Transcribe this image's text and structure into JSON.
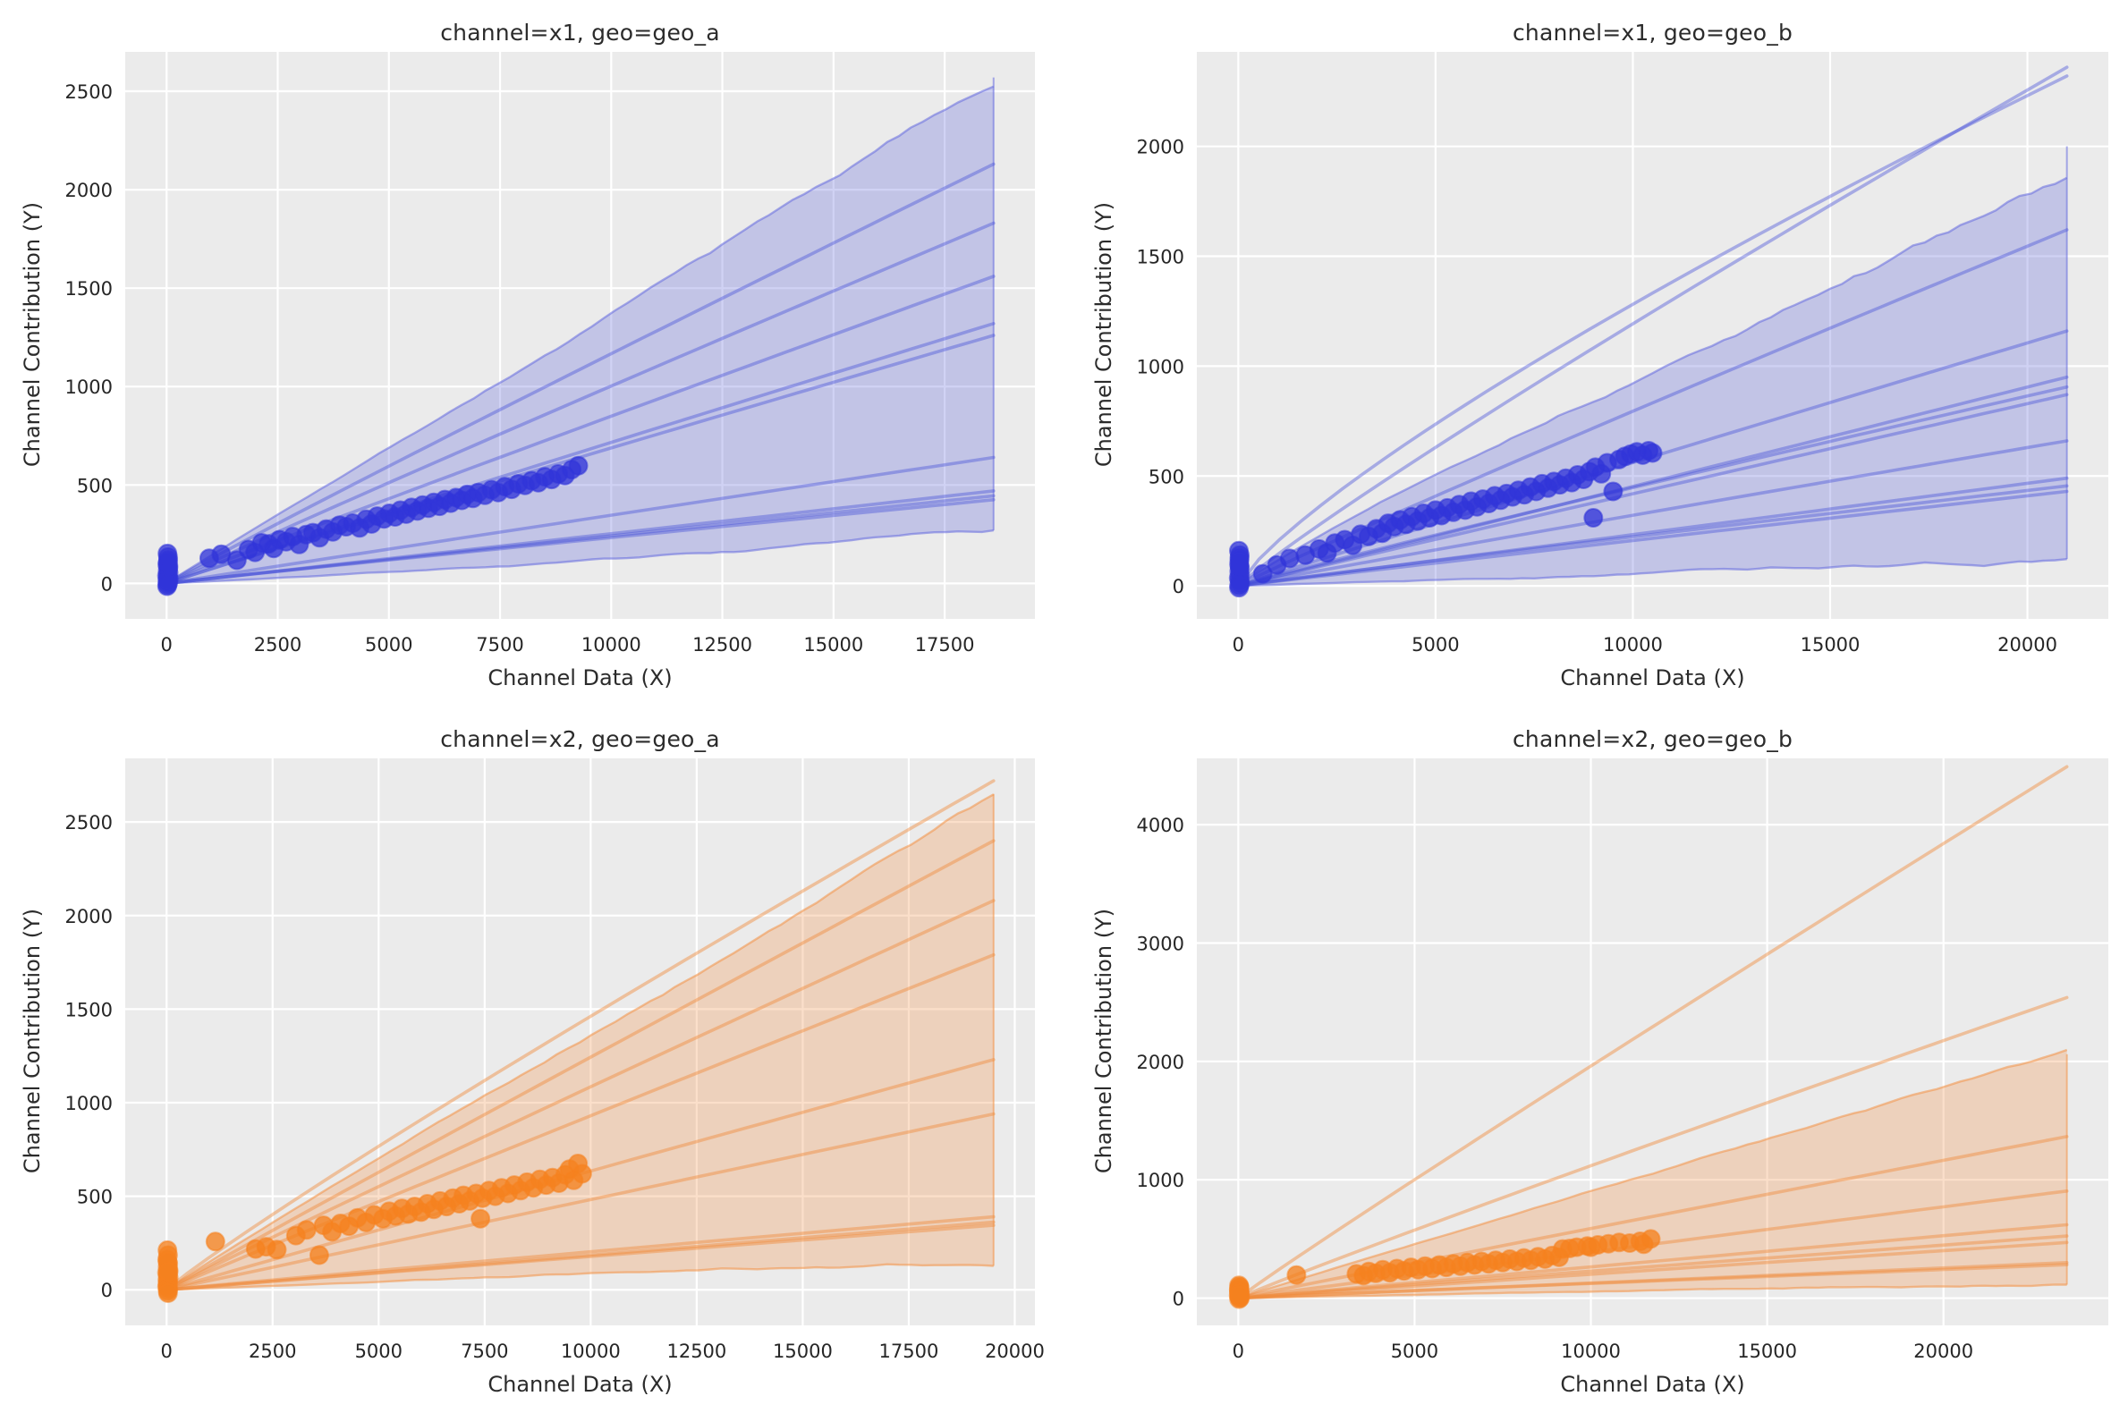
{
  "figure": {
    "background": "#ffffff",
    "axes_background": "#ebebeb",
    "grid_color": "#ffffff",
    "text_color": "#262626",
    "title_color": "#2b2b2b"
  },
  "chart_data": [
    {
      "id": "x1-geo-a",
      "type": "scatter",
      "title": "channel=x1, geo=geo_a",
      "xlabel": "Channel Data (X)",
      "ylabel": "Channel Contribution (Y)",
      "xlim": [
        -930,
        19530
      ],
      "ylim": [
        -180,
        2700
      ],
      "xticks": [
        0,
        2500,
        5000,
        7500,
        10000,
        12500,
        15000,
        17500
      ],
      "yticks": [
        0,
        500,
        1000,
        1500,
        2000,
        2500
      ],
      "grid": true,
      "legend_position": "none",
      "colors": {
        "dot": "#3134d8",
        "line": "rgba(72,80,216,0.42)",
        "band_fill": "rgba(100,106,220,0.30)",
        "band_edge": "rgba(100,106,222,0.55)"
      },
      "band": {
        "xmax": 18600,
        "top_end": 2570,
        "bottom_end": 210,
        "top_exp": 0.99,
        "seed": 7,
        "jag_top": 26,
        "jag_bottom": 12
      },
      "lines": [
        [
          2130,
          0.97
        ],
        [
          1830,
          0.97
        ],
        [
          1560,
          0.98
        ],
        [
          1320,
          0.985
        ],
        [
          1260,
          0.975
        ],
        [
          640,
          0.99
        ],
        [
          470,
          1.0
        ],
        [
          445,
          0.985
        ],
        [
          425,
          0.97
        ]
      ],
      "points": [
        [
          20,
          152
        ],
        [
          35,
          118
        ],
        [
          15,
          96
        ],
        [
          40,
          78
        ],
        [
          25,
          64
        ],
        [
          45,
          52
        ],
        [
          10,
          40
        ],
        [
          30,
          30
        ],
        [
          50,
          22
        ],
        [
          18,
          12
        ],
        [
          38,
          4
        ],
        [
          22,
          -6
        ],
        [
          12,
          -14
        ],
        [
          42,
          88
        ],
        [
          28,
          108
        ],
        [
          33,
          134
        ],
        [
          960,
          128
        ],
        [
          1230,
          148
        ],
        [
          1580,
          118
        ],
        [
          1840,
          172
        ],
        [
          1990,
          158
        ],
        [
          2140,
          206
        ],
        [
          2290,
          200
        ],
        [
          2410,
          178
        ],
        [
          2540,
          222
        ],
        [
          2690,
          212
        ],
        [
          2840,
          238
        ],
        [
          2980,
          198
        ],
        [
          3140,
          248
        ],
        [
          3290,
          258
        ],
        [
          3440,
          232
        ],
        [
          3590,
          276
        ],
        [
          3740,
          262
        ],
        [
          3890,
          296
        ],
        [
          4040,
          288
        ],
        [
          4190,
          306
        ],
        [
          4340,
          282
        ],
        [
          4490,
          326
        ],
        [
          4610,
          302
        ],
        [
          4740,
          342
        ],
        [
          4890,
          328
        ],
        [
          5010,
          356
        ],
        [
          5140,
          338
        ],
        [
          5260,
          372
        ],
        [
          5390,
          352
        ],
        [
          5510,
          386
        ],
        [
          5640,
          368
        ],
        [
          5760,
          398
        ],
        [
          5890,
          382
        ],
        [
          6010,
          412
        ],
        [
          6140,
          392
        ],
        [
          6260,
          426
        ],
        [
          6390,
          408
        ],
        [
          6510,
          436
        ],
        [
          6640,
          422
        ],
        [
          6760,
          452
        ],
        [
          6890,
          432
        ],
        [
          7010,
          462
        ],
        [
          7160,
          448
        ],
        [
          7310,
          476
        ],
        [
          7460,
          462
        ],
        [
          7610,
          492
        ],
        [
          7760,
          478
        ],
        [
          7910,
          506
        ],
        [
          8060,
          498
        ],
        [
          8210,
          522
        ],
        [
          8360,
          512
        ],
        [
          8510,
          542
        ],
        [
          8660,
          528
        ],
        [
          8810,
          556
        ],
        [
          8960,
          548
        ],
        [
          9110,
          578
        ],
        [
          9260,
          598
        ]
      ]
    },
    {
      "id": "x1-geo-b",
      "type": "scatter",
      "title": "channel=x1, geo=geo_b",
      "xlabel": "Channel Data (X)",
      "ylabel": "Channel Contribution (Y)",
      "xlim": [
        -1050,
        22050
      ],
      "ylim": [
        -150,
        2430
      ],
      "xticks": [
        0,
        5000,
        10000,
        15000,
        20000
      ],
      "yticks": [
        0,
        500,
        1000,
        1500,
        2000
      ],
      "grid": true,
      "legend_position": "none",
      "colors": {
        "dot": "#3134d8",
        "line": "rgba(72,80,216,0.42)",
        "band_fill": "rgba(100,106,220,0.30)",
        "band_edge": "rgba(100,106,222,0.55)"
      },
      "band": {
        "xmax": 21000,
        "top_end": 2000,
        "bottom_end": 130,
        "top_exp": 0.93,
        "seed": 13,
        "jag_top": 30,
        "jag_bottom": 14
      },
      "lines": [
        [
          2320,
          0.8
        ],
        [
          2360,
          0.92
        ],
        [
          1620,
          0.96
        ],
        [
          1160,
          0.98
        ],
        [
          950,
          1.0
        ],
        [
          905,
          0.95
        ],
        [
          870,
          0.985
        ],
        [
          660,
          0.97
        ],
        [
          490,
          1.0
        ],
        [
          455,
          0.96
        ],
        [
          430,
          0.99
        ]
      ],
      "points": [
        [
          15,
          160
        ],
        [
          30,
          128
        ],
        [
          20,
          102
        ],
        [
          40,
          84
        ],
        [
          25,
          66
        ],
        [
          45,
          50
        ],
        [
          12,
          36
        ],
        [
          35,
          24
        ],
        [
          50,
          12
        ],
        [
          22,
          2
        ],
        [
          18,
          -8
        ],
        [
          32,
          118
        ],
        [
          28,
          90
        ],
        [
          38,
          140
        ],
        [
          620,
          55
        ],
        [
          980,
          95
        ],
        [
          1300,
          125
        ],
        [
          1700,
          140
        ],
        [
          2050,
          168
        ],
        [
          2250,
          150
        ],
        [
          2450,
          195
        ],
        [
          2700,
          210
        ],
        [
          2900,
          185
        ],
        [
          3100,
          235
        ],
        [
          3300,
          225
        ],
        [
          3500,
          260
        ],
        [
          3650,
          240
        ],
        [
          3800,
          285
        ],
        [
          3950,
          270
        ],
        [
          4100,
          300
        ],
        [
          4250,
          280
        ],
        [
          4400,
          315
        ],
        [
          4550,
          295
        ],
        [
          4700,
          330
        ],
        [
          4850,
          310
        ],
        [
          5000,
          345
        ],
        [
          5150,
          320
        ],
        [
          5300,
          355
        ],
        [
          5450,
          335
        ],
        [
          5600,
          370
        ],
        [
          5750,
          345
        ],
        [
          5900,
          385
        ],
        [
          6050,
          360
        ],
        [
          6200,
          395
        ],
        [
          6350,
          375
        ],
        [
          6500,
          410
        ],
        [
          6650,
          390
        ],
        [
          6800,
          420
        ],
        [
          6950,
          405
        ],
        [
          7100,
          435
        ],
        [
          7250,
          415
        ],
        [
          7400,
          450
        ],
        [
          7550,
          430
        ],
        [
          7700,
          465
        ],
        [
          7850,
          445
        ],
        [
          8000,
          475
        ],
        [
          8150,
          460
        ],
        [
          8300,
          490
        ],
        [
          8450,
          470
        ],
        [
          8600,
          505
        ],
        [
          8750,
          485
        ],
        [
          8900,
          520
        ],
        [
          9000,
          310
        ],
        [
          9050,
          540
        ],
        [
          9200,
          510
        ],
        [
          9350,
          560
        ],
        [
          9500,
          430
        ],
        [
          9650,
          575
        ],
        [
          9800,
          590
        ],
        [
          9950,
          600
        ],
        [
          10100,
          610
        ],
        [
          10250,
          595
        ],
        [
          10400,
          615
        ],
        [
          10500,
          605
        ]
      ]
    },
    {
      "id": "x2-geo-a",
      "type": "scatter",
      "title": "channel=x2, geo=geo_a",
      "xlabel": "Channel Data (X)",
      "ylabel": "Channel Contribution (Y)",
      "xlim": [
        -975,
        20475
      ],
      "ylim": [
        -190,
        2840
      ],
      "xticks": [
        0,
        2500,
        5000,
        7500,
        10000,
        12500,
        15000,
        17500,
        20000
      ],
      "yticks": [
        0,
        500,
        1000,
        1500,
        2000,
        2500
      ],
      "grid": true,
      "legend_position": "none",
      "colors": {
        "dot": "#f5821f",
        "line": "rgba(240,140,60,0.46)",
        "band_fill": "rgba(243,150,78,0.30)",
        "band_edge": "rgba(242,146,70,0.55)"
      },
      "band": {
        "xmax": 19500,
        "top_end": 2650,
        "bottom_end": 160,
        "top_exp": 0.97,
        "seed": 21,
        "jag_top": 24,
        "jag_bottom": 12
      },
      "lines": [
        [
          2720,
          0.93
        ],
        [
          2400,
          0.985
        ],
        [
          2080,
          0.975
        ],
        [
          1790,
          0.98
        ],
        [
          1230,
          0.99
        ],
        [
          940,
          1.0
        ],
        [
          390,
          0.975
        ],
        [
          362,
          1.0
        ],
        [
          345,
          0.99
        ]
      ],
      "points": [
        [
          20,
          212
        ],
        [
          35,
          185
        ],
        [
          15,
          162
        ],
        [
          40,
          140
        ],
        [
          25,
          122
        ],
        [
          45,
          106
        ],
        [
          10,
          92
        ],
        [
          30,
          78
        ],
        [
          50,
          64
        ],
        [
          18,
          52
        ],
        [
          38,
          40
        ],
        [
          22,
          28
        ],
        [
          12,
          16
        ],
        [
          42,
          6
        ],
        [
          28,
          -6
        ],
        [
          33,
          -18
        ],
        [
          25,
          150
        ],
        [
          45,
          96
        ],
        [
          1150,
          258
        ],
        [
          2100,
          218
        ],
        [
          2350,
          230
        ],
        [
          2600,
          215
        ],
        [
          3050,
          290
        ],
        [
          3300,
          320
        ],
        [
          3600,
          185
        ],
        [
          3700,
          345
        ],
        [
          3900,
          310
        ],
        [
          4100,
          355
        ],
        [
          4300,
          340
        ],
        [
          4500,
          385
        ],
        [
          4700,
          360
        ],
        [
          4900,
          400
        ],
        [
          5100,
          380
        ],
        [
          5250,
          420
        ],
        [
          5400,
          395
        ],
        [
          5550,
          435
        ],
        [
          5700,
          405
        ],
        [
          5850,
          445
        ],
        [
          6000,
          415
        ],
        [
          6150,
          460
        ],
        [
          6300,
          430
        ],
        [
          6450,
          475
        ],
        [
          6600,
          445
        ],
        [
          6750,
          490
        ],
        [
          6900,
          460
        ],
        [
          7000,
          505
        ],
        [
          7150,
          475
        ],
        [
          7300,
          515
        ],
        [
          7400,
          380
        ],
        [
          7450,
          490
        ],
        [
          7600,
          530
        ],
        [
          7750,
          500
        ],
        [
          7900,
          545
        ],
        [
          8050,
          515
        ],
        [
          8200,
          560
        ],
        [
          8350,
          530
        ],
        [
          8500,
          575
        ],
        [
          8650,
          545
        ],
        [
          8800,
          590
        ],
        [
          8950,
          560
        ],
        [
          9100,
          600
        ],
        [
          9250,
          570
        ],
        [
          9400,
          615
        ],
        [
          9500,
          645
        ],
        [
          9600,
          585
        ],
        [
          9700,
          675
        ],
        [
          9800,
          620
        ]
      ]
    },
    {
      "id": "x2-geo-b",
      "type": "scatter",
      "title": "channel=x2, geo=geo_b",
      "xlabel": "Channel Data (X)",
      "ylabel": "Channel Contribution (Y)",
      "xlim": [
        -1175,
        24675
      ],
      "ylim": [
        -230,
        4560
      ],
      "xticks": [
        0,
        5000,
        10000,
        15000,
        20000
      ],
      "yticks": [
        0,
        1000,
        2000,
        3000,
        4000
      ],
      "grid": true,
      "legend_position": "none",
      "colors": {
        "dot": "#f5821f",
        "line": "rgba(240,140,60,0.46)",
        "band_fill": "rgba(243,150,78,0.30)",
        "band_edge": "rgba(242,146,70,0.55)"
      },
      "band": {
        "xmax": 23500,
        "top_end": 2060,
        "bottom_end": 140,
        "top_exp": 0.98,
        "seed": 5,
        "jag_top": 20,
        "jag_bottom": 10
      },
      "lines": [
        [
          4490,
          0.97
        ],
        [
          2540,
          0.96
        ],
        [
          1365,
          0.985
        ],
        [
          905,
          0.99
        ],
        [
          620,
          1.0
        ],
        [
          525,
          0.975
        ],
        [
          470,
          0.99
        ],
        [
          300,
          1.0
        ],
        [
          282,
          0.965
        ]
      ],
      "points": [
        [
          20,
          108
        ],
        [
          35,
          88
        ],
        [
          15,
          72
        ],
        [
          40,
          58
        ],
        [
          25,
          46
        ],
        [
          45,
          34
        ],
        [
          12,
          22
        ],
        [
          30,
          12
        ],
        [
          50,
          2
        ],
        [
          22,
          -8
        ],
        [
          18,
          64
        ],
        [
          32,
          96
        ],
        [
          28,
          40
        ],
        [
          38,
          20
        ],
        [
          1650,
          195
        ],
        [
          3350,
          205
        ],
        [
          3550,
          190
        ],
        [
          3700,
          225
        ],
        [
          3900,
          210
        ],
        [
          4100,
          240
        ],
        [
          4300,
          215
        ],
        [
          4500,
          250
        ],
        [
          4700,
          230
        ],
        [
          4900,
          260
        ],
        [
          5100,
          240
        ],
        [
          5300,
          270
        ],
        [
          5500,
          250
        ],
        [
          5700,
          280
        ],
        [
          5900,
          260
        ],
        [
          6100,
          290
        ],
        [
          6300,
          270
        ],
        [
          6500,
          300
        ],
        [
          6700,
          280
        ],
        [
          6900,
          310
        ],
        [
          7100,
          290
        ],
        [
          7300,
          320
        ],
        [
          7500,
          300
        ],
        [
          7700,
          330
        ],
        [
          7900,
          310
        ],
        [
          8100,
          340
        ],
        [
          8300,
          320
        ],
        [
          8500,
          350
        ],
        [
          8700,
          330
        ],
        [
          8900,
          360
        ],
        [
          9100,
          345
        ],
        [
          9200,
          415
        ],
        [
          9400,
          420
        ],
        [
          9600,
          430
        ],
        [
          9900,
          440
        ],
        [
          10000,
          430
        ],
        [
          10200,
          450
        ],
        [
          10500,
          460
        ],
        [
          10800,
          470
        ],
        [
          11100,
          465
        ],
        [
          11400,
          480
        ],
        [
          11500,
          455
        ],
        [
          11700,
          500
        ]
      ]
    }
  ]
}
